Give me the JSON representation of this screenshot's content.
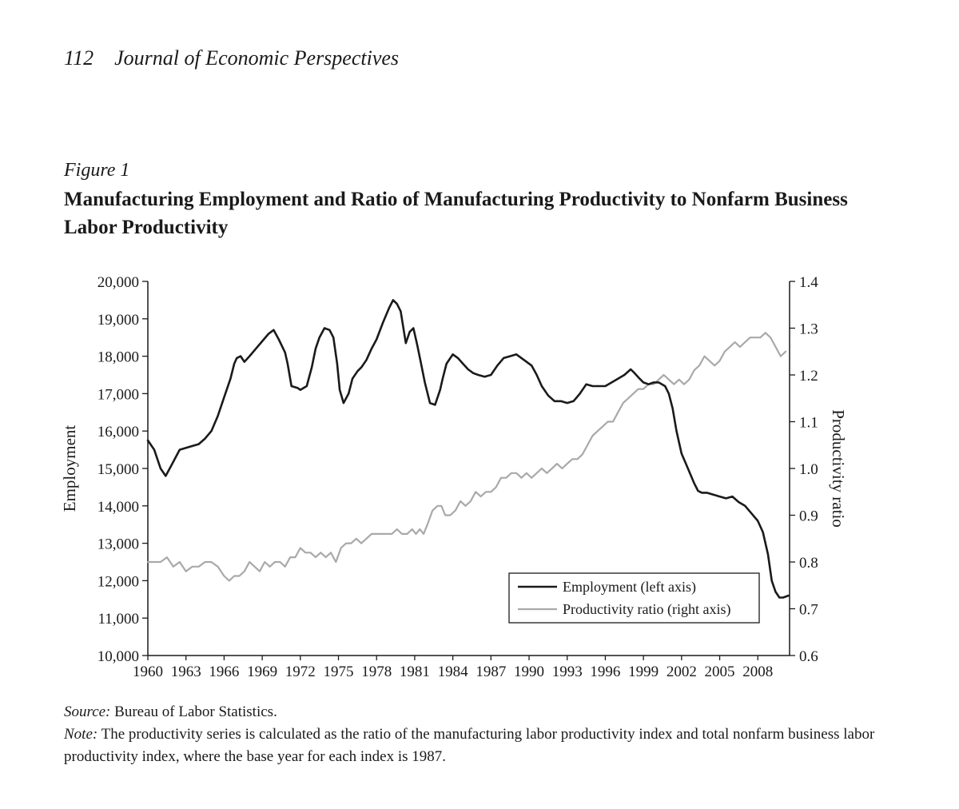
{
  "header": {
    "page_number": "112",
    "journal": "Journal of Economic Perspectives"
  },
  "figure": {
    "label": "Figure 1",
    "title": "Manufacturing Employment and Ratio of Manufacturing Productivity to Nonfarm Business Labor Productivity"
  },
  "footer": {
    "source_lead": "Source:",
    "source_text": "Bureau of Labor Statistics.",
    "note_lead": "Note:",
    "note_text": "The productivity series is calculated as the ratio of the manufacturing labor productivity index and total nonfarm business labor productivity index, where the base year for each index is 1987."
  },
  "chart_data": {
    "type": "line",
    "xlabel": "",
    "ylabel": "Employment",
    "y2label": "Productivity ratio",
    "xlim": [
      1960,
      2010.5
    ],
    "ylim": [
      10000,
      20000
    ],
    "y2lim": [
      0.6,
      1.4
    ],
    "x_ticks": [
      1960,
      1963,
      1966,
      1969,
      1972,
      1975,
      1978,
      1981,
      1984,
      1987,
      1990,
      1993,
      1996,
      1999,
      2002,
      2005,
      2008
    ],
    "x_tick_labels": [
      "1960",
      "1963",
      "1966",
      "1969",
      "1972",
      "1975",
      "1978",
      "1981",
      "1984",
      "1987",
      "1990",
      "1993",
      "1996",
      "1999",
      "2002",
      "2005",
      "2008"
    ],
    "y_ticks": [
      10000,
      11000,
      12000,
      13000,
      14000,
      15000,
      16000,
      17000,
      18000,
      19000,
      20000
    ],
    "y_tick_labels": [
      "10,000",
      "11,000",
      "12,000",
      "13,000",
      "14,000",
      "15,000",
      "16,000",
      "17,000",
      "18,000",
      "19,000",
      "20,000"
    ],
    "y2_ticks": [
      0.6,
      0.7,
      0.8,
      0.9,
      1.0,
      1.1,
      1.2,
      1.3,
      1.4
    ],
    "y2_tick_labels": [
      "0.6",
      "0.7",
      "0.8",
      "0.9",
      "1.0",
      "1.1",
      "1.2",
      "1.3",
      "1.4"
    ],
    "grid": false,
    "legend_position": "bottom-right",
    "series": [
      {
        "name": "Employment (left axis)",
        "axis": "left",
        "color": "#1a1a1a",
        "x": [
          1960.0,
          1960.5,
          1961.0,
          1961.4,
          1961.8,
          1962.5,
          1963.0,
          1963.5,
          1964.0,
          1964.5,
          1965.0,
          1965.5,
          1966.0,
          1966.5,
          1966.8,
          1967.0,
          1967.3,
          1967.6,
          1968.0,
          1968.5,
          1969.0,
          1969.5,
          1969.9,
          1970.3,
          1970.8,
          1971.0,
          1971.3,
          1971.8,
          1972.0,
          1972.5,
          1972.9,
          1973.2,
          1973.5,
          1973.9,
          1974.3,
          1974.6,
          1974.9,
          1975.1,
          1975.4,
          1975.8,
          1976.1,
          1976.5,
          1976.8,
          1977.2,
          1977.6,
          1978.0,
          1978.5,
          1979.0,
          1979.3,
          1979.6,
          1979.9,
          1980.3,
          1980.6,
          1980.9,
          1981.2,
          1981.5,
          1981.8,
          1982.2,
          1982.6,
          1983.0,
          1983.2,
          1983.5,
          1984.0,
          1984.4,
          1984.8,
          1985.2,
          1985.6,
          1986.0,
          1986.5,
          1987.0,
          1987.5,
          1988.0,
          1988.5,
          1989.0,
          1989.4,
          1989.8,
          1990.2,
          1990.6,
          1991.0,
          1991.5,
          1992.0,
          1992.5,
          1993.0,
          1993.5,
          1994.0,
          1994.5,
          1995.0,
          1995.5,
          1996.0,
          1996.5,
          1997.0,
          1997.5,
          1998.0,
          1998.3,
          1998.7,
          1999.0,
          1999.4,
          1999.8,
          2000.2,
          2000.7,
          2001.0,
          2001.3,
          2001.6,
          2002.0,
          2002.5,
          2003.0,
          2003.3,
          2003.6,
          2004.0,
          2004.5,
          2005.0,
          2005.5,
          2006.0,
          2006.5,
          2007.0,
          2007.5,
          2008.0,
          2008.4,
          2008.8,
          2009.1,
          2009.4,
          2009.7,
          2010.0,
          2010.4
        ],
        "y": [
          15750,
          15500,
          15000,
          14800,
          15050,
          15500,
          15550,
          15600,
          15650,
          15800,
          16000,
          16400,
          16900,
          17400,
          17800,
          17950,
          18000,
          17850,
          18000,
          18200,
          18400,
          18600,
          18700,
          18450,
          18100,
          17800,
          17200,
          17150,
          17100,
          17200,
          17700,
          18200,
          18500,
          18750,
          18700,
          18500,
          17800,
          17100,
          16750,
          17000,
          17400,
          17600,
          17700,
          17900,
          18200,
          18450,
          18900,
          19300,
          19500,
          19400,
          19200,
          18350,
          18650,
          18750,
          18300,
          17800,
          17300,
          16750,
          16700,
          17100,
          17400,
          17800,
          18050,
          17950,
          17800,
          17650,
          17550,
          17500,
          17450,
          17500,
          17750,
          17950,
          18000,
          18050,
          17950,
          17850,
          17750,
          17500,
          17200,
          16950,
          16800,
          16800,
          16750,
          16800,
          17000,
          17250,
          17200,
          17200,
          17200,
          17300,
          17400,
          17500,
          17650,
          17550,
          17400,
          17300,
          17250,
          17300,
          17300,
          17200,
          17000,
          16600,
          16000,
          15400,
          15000,
          14600,
          14400,
          14350,
          14350,
          14300,
          14250,
          14200,
          14250,
          14100,
          14000,
          13800,
          13600,
          13300,
          12700,
          12000,
          11700,
          11550,
          11550,
          11600
        ]
      },
      {
        "name": "Productivity ratio (right axis)",
        "axis": "right",
        "color": "#a9a9a9",
        "x": [
          1960.0,
          1961.0,
          1961.5,
          1962.0,
          1962.5,
          1963.0,
          1963.5,
          1964.0,
          1964.5,
          1965.0,
          1965.5,
          1966.0,
          1966.4,
          1966.8,
          1967.2,
          1967.6,
          1968.0,
          1968.4,
          1968.8,
          1969.2,
          1969.6,
          1970.0,
          1970.4,
          1970.8,
          1971.2,
          1971.6,
          1972.0,
          1972.4,
          1972.8,
          1973.2,
          1973.6,
          1974.0,
          1974.4,
          1974.8,
          1975.2,
          1975.6,
          1976.0,
          1976.4,
          1976.8,
          1977.2,
          1977.6,
          1978.0,
          1978.4,
          1978.8,
          1979.2,
          1979.6,
          1980.0,
          1980.4,
          1980.8,
          1981.1,
          1981.4,
          1981.7,
          1982.0,
          1982.4,
          1982.8,
          1983.1,
          1983.4,
          1983.8,
          1984.2,
          1984.6,
          1985.0,
          1985.4,
          1985.8,
          1986.2,
          1986.6,
          1987.0,
          1987.4,
          1987.8,
          1988.2,
          1988.6,
          1989.0,
          1989.4,
          1989.8,
          1990.2,
          1990.6,
          1991.0,
          1991.4,
          1991.8,
          1992.2,
          1992.6,
          1993.0,
          1993.4,
          1993.8,
          1994.2,
          1994.6,
          1995.0,
          1995.4,
          1995.8,
          1996.2,
          1996.6,
          1997.0,
          1997.4,
          1997.8,
          1998.2,
          1998.6,
          1999.0,
          1999.4,
          1999.8,
          2000.2,
          2000.6,
          2001.0,
          2001.4,
          2001.8,
          2002.2,
          2002.6,
          2003.0,
          2003.4,
          2003.8,
          2004.2,
          2004.6,
          2005.0,
          2005.4,
          2005.8,
          2006.2,
          2006.6,
          2007.0,
          2007.4,
          2007.8,
          2008.2,
          2008.6,
          2009.0,
          2009.4,
          2009.8,
          2010.2
        ],
        "y": [
          0.8,
          0.8,
          0.81,
          0.79,
          0.8,
          0.78,
          0.79,
          0.79,
          0.8,
          0.8,
          0.79,
          0.77,
          0.76,
          0.77,
          0.77,
          0.78,
          0.8,
          0.79,
          0.78,
          0.8,
          0.79,
          0.8,
          0.8,
          0.79,
          0.81,
          0.81,
          0.83,
          0.82,
          0.82,
          0.81,
          0.82,
          0.81,
          0.82,
          0.8,
          0.83,
          0.84,
          0.84,
          0.85,
          0.84,
          0.85,
          0.86,
          0.86,
          0.86,
          0.86,
          0.86,
          0.87,
          0.86,
          0.86,
          0.87,
          0.86,
          0.87,
          0.86,
          0.88,
          0.91,
          0.92,
          0.92,
          0.9,
          0.9,
          0.91,
          0.93,
          0.92,
          0.93,
          0.95,
          0.94,
          0.95,
          0.95,
          0.96,
          0.98,
          0.98,
          0.99,
          0.99,
          0.98,
          0.99,
          0.98,
          0.99,
          1.0,
          0.99,
          1.0,
          1.01,
          1.0,
          1.01,
          1.02,
          1.02,
          1.03,
          1.05,
          1.07,
          1.08,
          1.09,
          1.1,
          1.1,
          1.12,
          1.14,
          1.15,
          1.16,
          1.17,
          1.17,
          1.18,
          1.18,
          1.19,
          1.2,
          1.19,
          1.18,
          1.19,
          1.18,
          1.19,
          1.21,
          1.22,
          1.24,
          1.23,
          1.22,
          1.23,
          1.25,
          1.26,
          1.27,
          1.26,
          1.27,
          1.28,
          1.28,
          1.28,
          1.29,
          1.28,
          1.26,
          1.24,
          1.25
        ]
      }
    ]
  }
}
